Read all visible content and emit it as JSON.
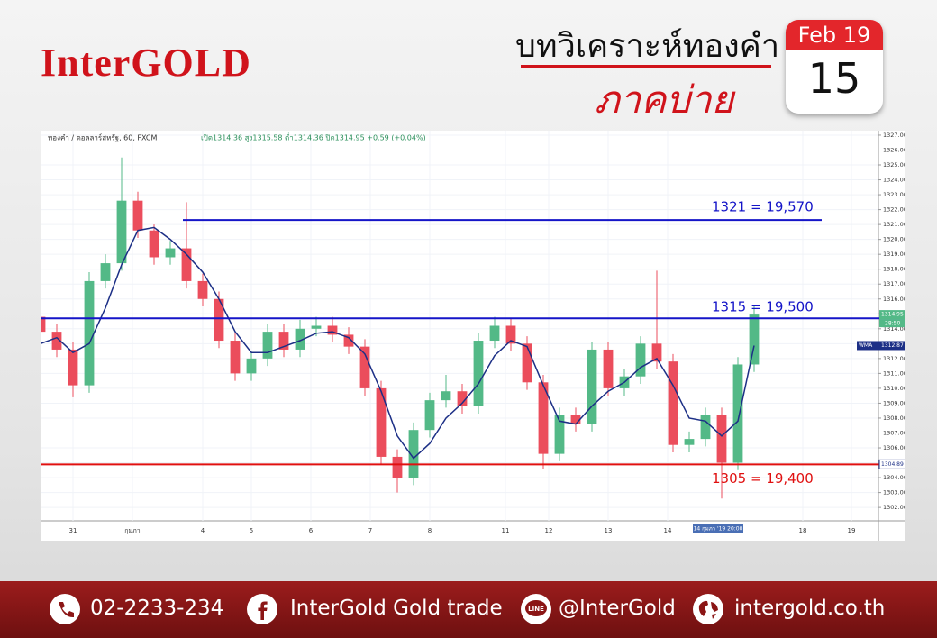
{
  "header": {
    "logo": "InterGOLD",
    "title": "บทวิเคราะห์ทองคำ",
    "subtitle": "ภาคบ่าย",
    "date_month": "Feb 19",
    "date_day": "15"
  },
  "chart_data": {
    "type": "candlestick",
    "symbol": "ทองคำ / ดอลลาร์สหรัฐ, 60, FXCM",
    "ohlc_text": "เปิด1314.36 สูง1315.58 ต่ำ1314.36 ปิด1314.95 +0.59 (+0.04%)",
    "x": [
      0,
      3,
      6,
      9,
      12,
      15,
      18,
      21,
      24,
      27,
      30,
      33,
      36,
      39,
      42,
      45,
      48,
      51,
      54,
      57,
      60,
      63,
      66,
      69,
      72,
      75,
      78,
      81,
      84,
      87,
      90,
      93,
      96,
      99,
      102,
      105,
      108,
      111,
      114,
      117,
      120,
      123,
      126,
      129,
      132
    ],
    "open": [
      1314.8,
      1313.8,
      1312.6,
      1310.2,
      1317.2,
      1318.4,
      1322.6,
      1320.6,
      1318.8,
      1319.4,
      1317.2,
      1316.0,
      1313.2,
      1311.0,
      1312.0,
      1313.8,
      1312.6,
      1314.0,
      1314.2,
      1313.6,
      1312.8,
      1310.0,
      1305.4,
      1304.0,
      1307.2,
      1309.2,
      1309.8,
      1308.8,
      1313.2,
      1314.2,
      1313.0,
      1310.4,
      1305.6,
      1308.2,
      1307.6,
      1312.6,
      1310.0,
      1310.8,
      1313.0,
      1311.8,
      1306.2,
      1306.6,
      1308.2,
      1305.0,
      1311.6
    ],
    "high": [
      1315.3,
      1314.3,
      1313.1,
      1317.8,
      1319.0,
      1325.5,
      1323.2,
      1321.0,
      1319.9,
      1322.5,
      1317.7,
      1316.5,
      1313.7,
      1312.5,
      1314.3,
      1314.3,
      1314.6,
      1314.8,
      1314.8,
      1314.1,
      1313.3,
      1310.5,
      1305.9,
      1307.7,
      1309.7,
      1310.9,
      1310.3,
      1313.7,
      1314.8,
      1314.7,
      1313.5,
      1310.9,
      1308.7,
      1308.7,
      1313.1,
      1313.1,
      1311.3,
      1313.5,
      1317.9,
      1312.3,
      1307.1,
      1308.7,
      1308.7,
      1312.1,
      1315.6
    ],
    "low": [
      1313.3,
      1312.1,
      1309.4,
      1309.7,
      1316.7,
      1317.9,
      1320.1,
      1318.3,
      1318.3,
      1316.7,
      1315.5,
      1312.7,
      1310.5,
      1310.5,
      1311.5,
      1312.1,
      1312.1,
      1313.5,
      1313.1,
      1312.3,
      1309.5,
      1304.9,
      1303.0,
      1303.5,
      1306.7,
      1308.7,
      1308.3,
      1308.3,
      1312.7,
      1312.5,
      1309.9,
      1304.6,
      1305.1,
      1307.1,
      1307.1,
      1309.5,
      1309.5,
      1310.3,
      1311.3,
      1305.7,
      1305.7,
      1306.1,
      1302.6,
      1304.5,
      1311.1
    ],
    "close": [
      1313.8,
      1312.6,
      1310.2,
      1317.2,
      1318.4,
      1322.6,
      1320.6,
      1318.8,
      1319.4,
      1317.2,
      1316.0,
      1313.2,
      1311.0,
      1312.0,
      1313.8,
      1312.6,
      1314.0,
      1314.2,
      1313.6,
      1312.8,
      1310.0,
      1305.4,
      1304.0,
      1307.2,
      1309.2,
      1309.8,
      1308.8,
      1313.2,
      1314.2,
      1313.0,
      1310.4,
      1305.6,
      1308.2,
      1307.6,
      1312.6,
      1310.0,
      1310.8,
      1313.0,
      1311.8,
      1306.2,
      1306.6,
      1308.2,
      1305.0,
      1311.6,
      1314.95
    ],
    "up_color": "#53b987",
    "down_color": "#eb4d5c",
    "wma": {
      "name": "WMA",
      "color": "#1c2f86",
      "values": [
        1313.0,
        1313.4,
        1312.4,
        1313.0,
        1315.4,
        1318.3,
        1320.6,
        1320.8,
        1320.0,
        1319.0,
        1317.8,
        1316.0,
        1313.8,
        1312.4,
        1312.4,
        1312.8,
        1313.2,
        1313.7,
        1313.8,
        1313.4,
        1312.3,
        1309.8,
        1306.8,
        1305.3,
        1306.3,
        1308.0,
        1309.0,
        1310.3,
        1312.2,
        1313.2,
        1312.8,
        1310.2,
        1307.8,
        1307.6,
        1308.8,
        1309.8,
        1310.4,
        1311.4,
        1312.0,
        1310.2,
        1308.0,
        1307.8,
        1306.8,
        1307.8,
        1312.87
      ]
    },
    "levels": [
      {
        "value": 1321.3,
        "label": "1321 = 19,570",
        "color": "#1515c8"
      },
      {
        "value": 1314.7,
        "label": "1315 = 19,500",
        "color": "#1515c8"
      },
      {
        "value": 1304.89,
        "label": "1305 = 19,400",
        "color": "#e01010"
      }
    ],
    "countdown": "28:50",
    "cursor_label": "14 กุมภา '19 20:00",
    "xlim": [
      0,
      155
    ],
    "ylim": [
      1301.1,
      1327.3
    ],
    "xticks": [
      {
        "value": 6,
        "label": "31"
      },
      {
        "value": 17,
        "label": "กุมภา"
      },
      {
        "value": 30,
        "label": "4"
      },
      {
        "value": 39,
        "label": "5"
      },
      {
        "value": 50,
        "label": "6"
      },
      {
        "value": 61,
        "label": "7"
      },
      {
        "value": 72,
        "label": "8"
      },
      {
        "value": 86,
        "label": "11"
      },
      {
        "value": 94,
        "label": "12"
      },
      {
        "value": 105,
        "label": "13"
      },
      {
        "value": 116,
        "label": "14"
      },
      {
        "value": 141,
        "label": "18"
      },
      {
        "value": 150,
        "label": "19"
      }
    ],
    "yticks": [
      {
        "value": 1302,
        "label": "1302.00"
      },
      {
        "value": 1303,
        "label": "1303.00"
      },
      {
        "value": 1304,
        "label": "1304.00"
      },
      {
        "value": 1305,
        "label": "1305.00"
      },
      {
        "value": 1306,
        "label": "1306.00"
      },
      {
        "value": 1307,
        "label": "1307.00"
      },
      {
        "value": 1308,
        "label": "1308.00"
      },
      {
        "value": 1309,
        "label": "1309.00"
      },
      {
        "value": 1310,
        "label": "1310.00"
      },
      {
        "value": 1311,
        "label": "1311.00"
      },
      {
        "value": 1312,
        "label": "1312.00"
      },
      {
        "value": 1313,
        "label": "1313.00"
      },
      {
        "value": 1314,
        "label": "1314.00"
      },
      {
        "value": 1315,
        "label": "1315.00"
      },
      {
        "value": 1316,
        "label": "1316.00"
      },
      {
        "value": 1317,
        "label": "1317.00"
      },
      {
        "value": 1318,
        "label": "1318.00"
      },
      {
        "value": 1319,
        "label": "1319.00"
      },
      {
        "value": 1320,
        "label": "1320.00"
      },
      {
        "value": 1321,
        "label": "1321.00"
      },
      {
        "value": 1322,
        "label": "1322.00"
      },
      {
        "value": 1323,
        "label": "1323.00"
      },
      {
        "value": 1324,
        "label": "1324.00"
      },
      {
        "value": 1325,
        "label": "1325.00"
      },
      {
        "value": 1326,
        "label": "1326.00"
      },
      {
        "value": 1327,
        "label": "1327.00"
      }
    ],
    "grid": true
  },
  "footer": {
    "phone": "02-2233-234",
    "facebook": "InterGold Gold trade",
    "line": "@InterGold",
    "website": "intergold.co.th"
  }
}
